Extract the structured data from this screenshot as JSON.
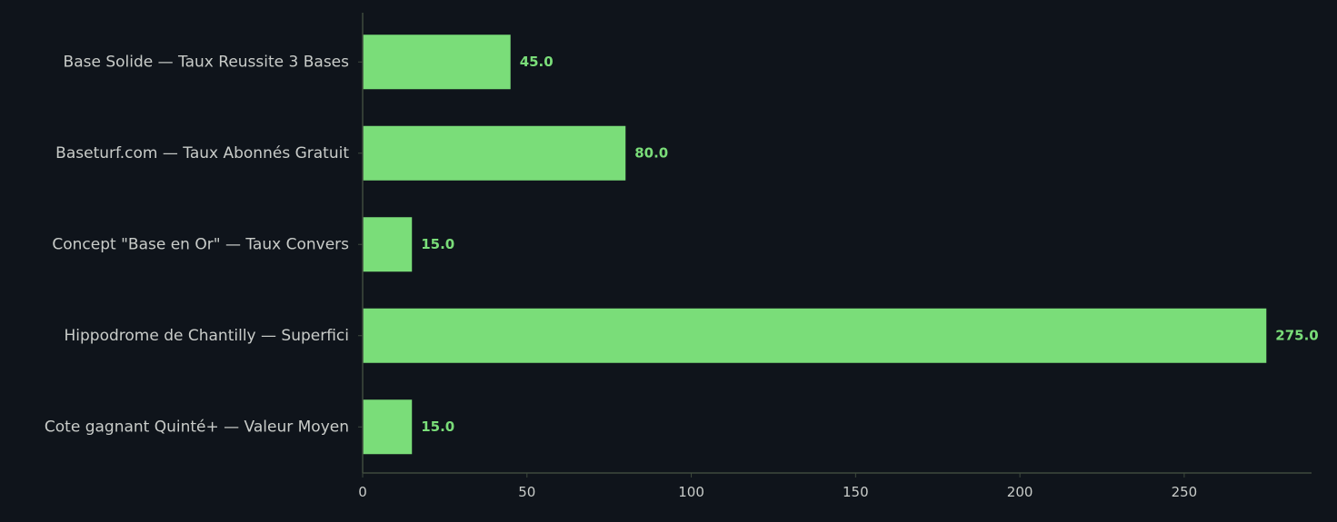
{
  "chart_data": {
    "type": "bar",
    "orientation": "horizontal",
    "categories": [
      "Base Solide — Taux Reussite 3 Bases",
      "Baseturf.com — Taux Abonnés Gratuit",
      "Concept \"Base en Or\" — Taux Convers",
      "Hippodrome de Chantilly — Superfici",
      "Cote gagnant Quinté+ — Valeur Moyen"
    ],
    "values": [
      45.0,
      80.0,
      15.0,
      275.0,
      15.0
    ],
    "value_labels": [
      "45.0",
      "80.0",
      "15.0",
      "275.0",
      "15.0"
    ],
    "xticks": [
      "0",
      "50",
      "100",
      "150",
      "200",
      "250"
    ],
    "xtick_values": [
      0,
      50,
      100,
      150,
      200,
      250
    ],
    "xlim": [
      0,
      288.75
    ],
    "title": "",
    "xlabel": "",
    "ylabel": "",
    "grid": false,
    "legend": "none",
    "colors": {
      "background": "#0f141b",
      "bar": "#7add79",
      "value_label": "#7add79",
      "axis": "#3e4a3d",
      "text": "#c9ccc9"
    }
  }
}
